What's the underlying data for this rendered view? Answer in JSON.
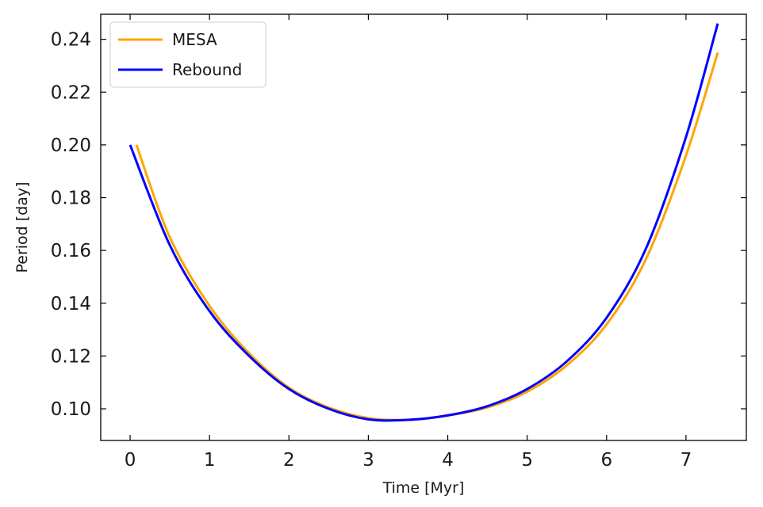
{
  "chart_data": {
    "type": "line",
    "title": "",
    "xlabel": "Time [Myr]",
    "ylabel": "Period [day]",
    "xlim": [
      -0.37,
      7.76
    ],
    "ylim": [
      0.088,
      0.2495
    ],
    "xticks": [
      0,
      1,
      2,
      3,
      4,
      5,
      6,
      7
    ],
    "xtick_labels": [
      "0",
      "1",
      "2",
      "3",
      "4",
      "5",
      "6",
      "7"
    ],
    "yticks": [
      0.1,
      0.12,
      0.14,
      0.16,
      0.18,
      0.2,
      0.22,
      0.24
    ],
    "ytick_labels": [
      "0.10",
      "0.12",
      "0.14",
      "0.16",
      "0.18",
      "0.20",
      "0.22",
      "0.24"
    ],
    "grid": false,
    "tick_direction": "in",
    "ticks_on_all_sides": true,
    "legend": {
      "placement": "top-left"
    },
    "series": [
      {
        "name": "MESA",
        "color": "#ffa500",
        "x": [
          0.08,
          0.5,
          1.0,
          1.5,
          2.0,
          2.5,
          3.0,
          3.5,
          4.0,
          4.5,
          5.0,
          5.5,
          6.0,
          6.5,
          7.0,
          7.4
        ],
        "y": [
          0.2,
          0.165,
          0.139,
          0.121,
          0.108,
          0.1005,
          0.0965,
          0.0958,
          0.0975,
          0.1005,
          0.1065,
          0.1165,
          0.132,
          0.157,
          0.196,
          0.235
        ]
      },
      {
        "name": "Rebound",
        "color": "#0000ff",
        "x": [
          0.0,
          0.5,
          1.0,
          1.5,
          2.0,
          2.5,
          3.0,
          3.5,
          4.0,
          4.5,
          5.0,
          5.5,
          6.0,
          6.5,
          7.0,
          7.4
        ],
        "y": [
          0.2,
          0.162,
          0.137,
          0.12,
          0.1075,
          0.1,
          0.096,
          0.0958,
          0.0975,
          0.101,
          0.1075,
          0.118,
          0.1345,
          0.161,
          0.203,
          0.246
        ]
      }
    ]
  }
}
